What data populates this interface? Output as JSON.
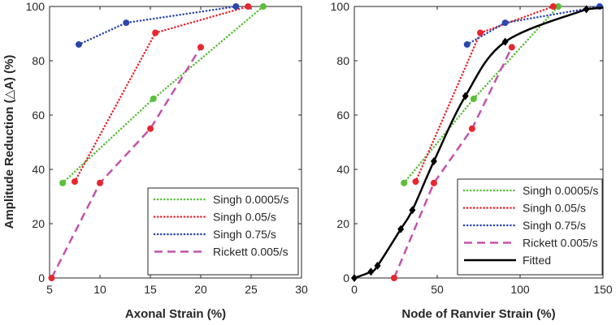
{
  "chart_data": [
    {
      "type": "line",
      "xlabel": "Axonal Strain (%)",
      "ylabel": "Amplitude Reduction (△A) (%)",
      "xlim": [
        5,
        30
      ],
      "ylim": [
        0,
        100
      ],
      "xticks": [
        "5",
        "10",
        "15",
        "20",
        "25",
        "30"
      ],
      "yticks": [
        "0",
        "20",
        "40",
        "60",
        "80",
        "100"
      ],
      "legend_position": "bottom-right",
      "series": [
        {
          "name": "Singh 0.0005/s",
          "style": "dotted",
          "color": "#5abf3a",
          "marker": "#5abf3a",
          "x": [
            6.3,
            15.3,
            26.2
          ],
          "y": [
            35,
            66,
            100
          ]
        },
        {
          "name": "Singh 0.05/s",
          "style": "dotted",
          "color": "#e8262e",
          "marker": "#e8262e",
          "x": [
            7.5,
            15.5,
            24.7
          ],
          "y": [
            35.5,
            90.3,
            100
          ]
        },
        {
          "name": "Singh 0.75/s",
          "style": "dotted",
          "color": "#2a47b0",
          "marker": "#2a47b0",
          "x": [
            7.9,
            12.6,
            23.5
          ],
          "y": [
            86,
            94,
            100
          ]
        },
        {
          "name": "Rickett 0.005/s",
          "style": "dashed",
          "color": "#c451ad",
          "marker": "#e8262e",
          "x": [
            5.2,
            10,
            15,
            20
          ],
          "y": [
            0,
            35,
            55,
            85
          ]
        }
      ]
    },
    {
      "type": "line",
      "xlabel": "Node of Ranvier Strain (%)",
      "ylabel": "",
      "xlim": [
        0,
        150
      ],
      "ylim": [
        0,
        100
      ],
      "xticks": [
        "0",
        "50",
        "100",
        "150"
      ],
      "yticks": [
        "0",
        "20",
        "40",
        "60",
        "80",
        "100"
      ],
      "legend_position": "bottom-right",
      "series": [
        {
          "name": "Singh 0.0005/s",
          "style": "dotted",
          "color": "#5abf3a",
          "marker": "#5abf3a",
          "x": [
            30,
            72,
            123
          ],
          "y": [
            35,
            66,
            100
          ]
        },
        {
          "name": "Singh 0.05/s",
          "style": "dotted",
          "color": "#e8262e",
          "marker": "#e8262e",
          "x": [
            37,
            76,
            120
          ],
          "y": [
            35.5,
            90.3,
            100
          ]
        },
        {
          "name": "Singh 0.75/s",
          "style": "dotted",
          "color": "#2a47b0",
          "marker": "#2a47b0",
          "x": [
            68,
            91,
            148
          ],
          "y": [
            86,
            94,
            100
          ]
        },
        {
          "name": "Rickett 0.005/s",
          "style": "dashed",
          "color": "#c451ad",
          "marker": "#e8262e",
          "x": [
            24,
            48,
            71,
            95
          ],
          "y": [
            0,
            35,
            55,
            85
          ]
        },
        {
          "name": "Fitted",
          "style": "solid",
          "color": "#000000",
          "marker": "#000000",
          "marker_shape": "diamond",
          "x": [
            0,
            10,
            14,
            28,
            35,
            48,
            67,
            91,
            140
          ],
          "y": [
            0,
            2.3,
            4.5,
            18,
            25,
            43,
            67,
            87,
            99
          ]
        }
      ]
    }
  ]
}
